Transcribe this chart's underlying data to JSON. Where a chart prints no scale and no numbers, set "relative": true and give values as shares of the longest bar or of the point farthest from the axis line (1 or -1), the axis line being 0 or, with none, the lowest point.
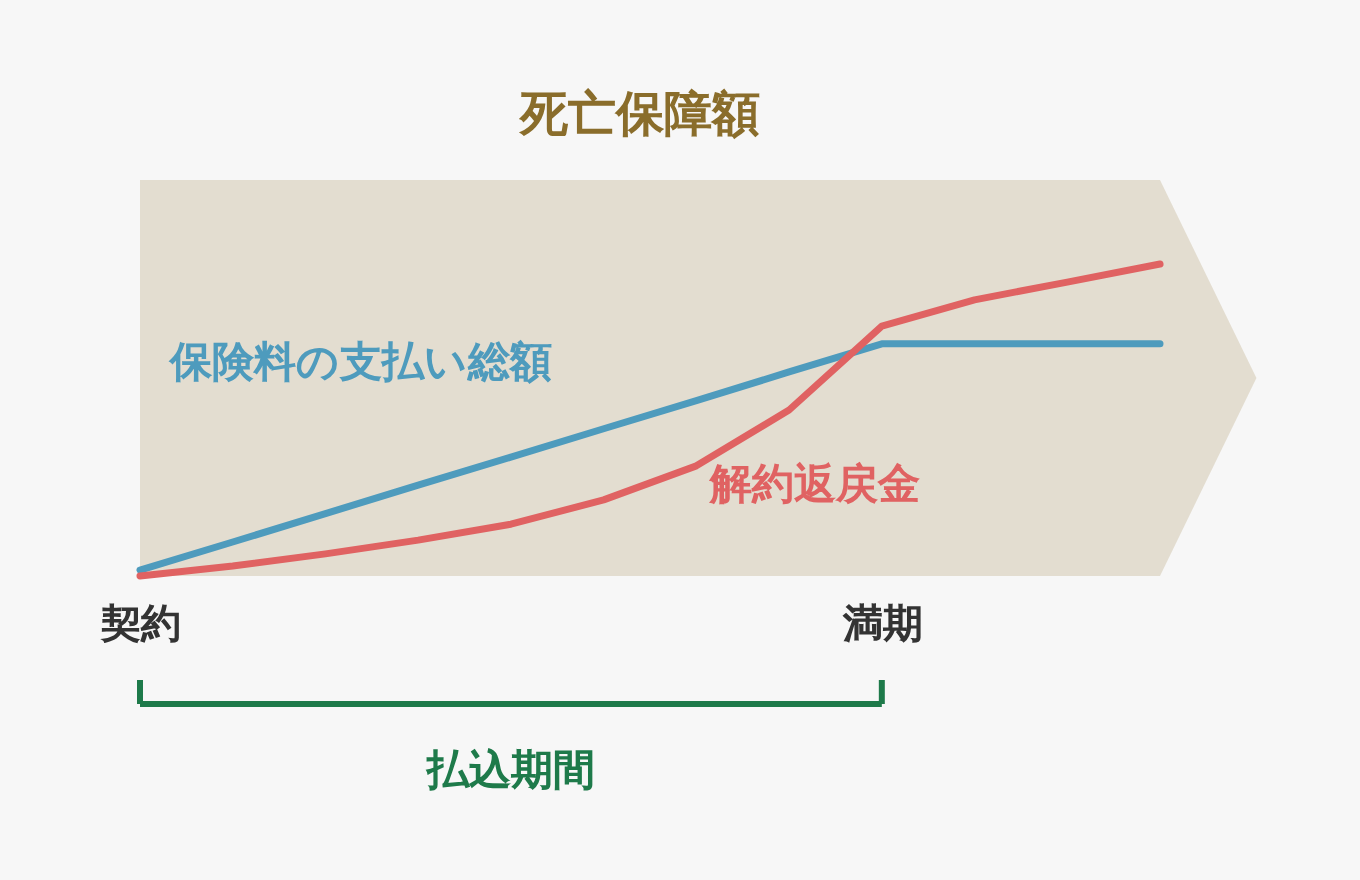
{
  "chart_data": {
    "type": "line",
    "relative": true,
    "title": "死亡保障額",
    "categories": [
      "契約",
      null,
      null,
      null,
      null,
      null,
      null,
      null,
      "満期",
      null,
      null,
      null
    ],
    "series": [
      {
        "name": "保険料の支払い総額",
        "color": "#4e9bbd",
        "values": [
          0.019,
          0.109,
          0.2,
          0.291,
          0.381,
          0.472,
          0.562,
          0.654,
          0.744,
          0.744,
          0.744,
          0.744
        ]
      },
      {
        "name": "解約返戻金",
        "color": "#e06262",
        "values": [
          0,
          0.032,
          0.071,
          0.115,
          0.166,
          0.244,
          0.353,
          0.532,
          0.801,
          0.885,
          0.942,
          1
        ]
      }
    ],
    "annotations": [
      "払込期間"
    ],
    "grid": false,
    "line_style": "solid",
    "marker": "none"
  }
}
